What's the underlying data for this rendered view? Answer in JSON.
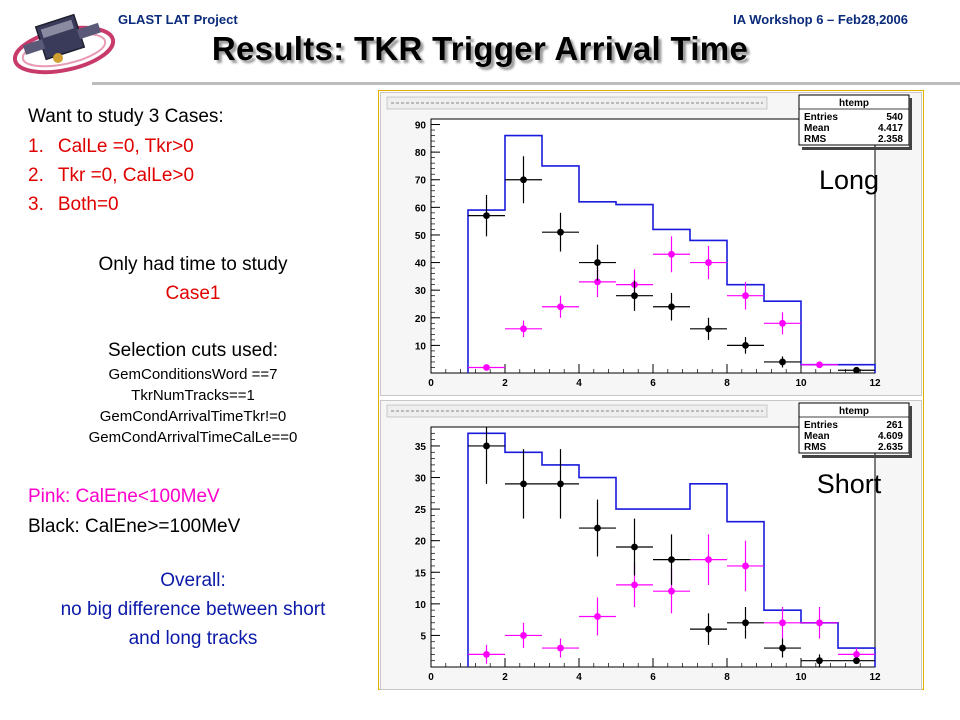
{
  "header": {
    "project": "GLAST LAT Project",
    "meeting": "IA Workshop 6 – Feb28,2006",
    "title": "Results: TKR Trigger Arrival Time"
  },
  "left_panel": {
    "intro": "Want to study 3 Cases:",
    "cases": [
      {
        "num": "1.",
        "text": "CalLe =0, Tkr>0"
      },
      {
        "num": "2.",
        "text": "Tkr =0, CalLe>0"
      },
      {
        "num": "3.",
        "text": "Both=0"
      }
    ],
    "time_note": "Only had time to study",
    "time_case": "Case1",
    "cuts_heading": "Selection cuts used:",
    "cuts": [
      "GemConditionsWord ==7",
      "TkrNumTracks==1",
      "GemCondArrivalTimeTkr!=0",
      "GemCondArrivalTimeCalLe==0"
    ],
    "pink_legend": "Pink: CalEne<100MeV",
    "black_legend": "Black: CalEne>=100MeV",
    "overall_head": "Overall:",
    "overall_line1": "no big difference between short",
    "overall_line2": "and long tracks"
  },
  "colors": {
    "hist": "#1a1adc",
    "pink": "#ff00ff",
    "black": "#000000",
    "red_text": "#e00000",
    "blue_text": "#0b1aa8"
  },
  "chart_data": [
    {
      "type": "bar",
      "label": "Long",
      "stats": {
        "title": "htemp",
        "rows": [
          [
            "Entries",
            "540"
          ],
          [
            "Mean",
            "4.417"
          ],
          [
            "RMS",
            "2.358"
          ]
        ]
      },
      "xlim": [
        0,
        12
      ],
      "ylim": [
        0,
        92
      ],
      "xticks": [
        0,
        2,
        4,
        6,
        8,
        10,
        12
      ],
      "yticks": [
        10,
        20,
        30,
        40,
        50,
        60,
        70,
        80,
        90
      ],
      "histogram": {
        "edges": [
          1,
          2,
          3,
          4,
          5,
          6,
          7,
          8,
          9,
          10,
          11,
          12
        ],
        "values": [
          59,
          86,
          75,
          62,
          61,
          52,
          48,
          32,
          26,
          3,
          3
        ]
      },
      "series": [
        {
          "name": "Pink: CalEne<100MeV",
          "points": [
            [
              1.5,
              2,
              0
            ],
            [
              2.5,
              16,
              3
            ],
            [
              3.5,
              24,
              4
            ],
            [
              4.5,
              33,
              5.5
            ],
            [
              5.5,
              32,
              5.5
            ],
            [
              6.5,
              43,
              6.5
            ],
            [
              7.5,
              40,
              6
            ],
            [
              8.5,
              28,
              5
            ],
            [
              9.5,
              18,
              4
            ],
            [
              10.5,
              3,
              0
            ]
          ]
        },
        {
          "name": "Black: CalEne>=100MeV",
          "points": [
            [
              1.5,
              57,
              7.5
            ],
            [
              2.5,
              70,
              8.5
            ],
            [
              3.5,
              51,
              7
            ],
            [
              4.5,
              40,
              6.5
            ],
            [
              5.5,
              28,
              5.5
            ],
            [
              6.5,
              24,
              5
            ],
            [
              7.5,
              16,
              4
            ],
            [
              8.5,
              10,
              3
            ],
            [
              9.5,
              4,
              2
            ],
            [
              11.5,
              1,
              0
            ]
          ]
        }
      ]
    },
    {
      "type": "bar",
      "label": "Short",
      "stats": {
        "title": "htemp",
        "rows": [
          [
            "Entries",
            "261"
          ],
          [
            "Mean",
            "4.609"
          ],
          [
            "RMS",
            "2.635"
          ]
        ]
      },
      "xlim": [
        0,
        12
      ],
      "ylim": [
        0,
        38
      ],
      "xticks": [
        0,
        2,
        4,
        6,
        8,
        10,
        12
      ],
      "yticks": [
        5,
        10,
        15,
        20,
        25,
        30,
        35
      ],
      "histogram": {
        "edges": [
          1,
          2,
          3,
          4,
          5,
          6,
          7,
          8,
          9,
          10,
          11,
          12
        ],
        "values": [
          37,
          34,
          32,
          30,
          25,
          25,
          29,
          23,
          9,
          7,
          3
        ]
      },
      "series": [
        {
          "name": "Pink: CalEne<100MeV",
          "points": [
            [
              1.5,
              2,
              1.5
            ],
            [
              2.5,
              5,
              2
            ],
            [
              3.5,
              3,
              1.5
            ],
            [
              4.5,
              8,
              3
            ],
            [
              5.5,
              13,
              3.5
            ],
            [
              6.5,
              12,
              3.5
            ],
            [
              7.5,
              17,
              4
            ],
            [
              8.5,
              16,
              4
            ],
            [
              9.5,
              7,
              2.5
            ],
            [
              10.5,
              7,
              2.5
            ],
            [
              11.5,
              2,
              1
            ]
          ]
        },
        {
          "name": "Black: CalEne>=100MeV",
          "points": [
            [
              1.5,
              35,
              6
            ],
            [
              2.5,
              29,
              5.5
            ],
            [
              3.5,
              29,
              5.5
            ],
            [
              4.5,
              22,
              4.5
            ],
            [
              5.5,
              19,
              4.5
            ],
            [
              6.5,
              17,
              4
            ],
            [
              7.5,
              6,
              2.5
            ],
            [
              8.5,
              7,
              2.5
            ],
            [
              9.5,
              3,
              1.5
            ],
            [
              10.5,
              1,
              1
            ],
            [
              11.5,
              1,
              0.5
            ]
          ]
        }
      ]
    }
  ]
}
